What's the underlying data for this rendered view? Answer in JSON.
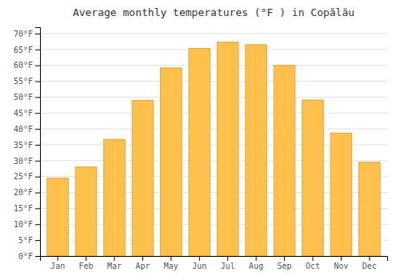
{
  "chart_data": {
    "type": "bar",
    "title": "Average monthly temperatures (°F ) in Copălău",
    "categories": [
      "Jan",
      "Feb",
      "Mar",
      "Apr",
      "May",
      "Jun",
      "Jul",
      "Aug",
      "Sep",
      "Oct",
      "Nov",
      "Dec"
    ],
    "values": [
      24.5,
      28.0,
      36.7,
      49.0,
      59.2,
      65.3,
      67.3,
      66.5,
      60.0,
      49.1,
      38.7,
      29.5
    ],
    "color": "#FFC04C",
    "ylim": [
      0,
      72
    ],
    "yticks": [
      {
        "value": 0,
        "label": "0°F"
      },
      {
        "value": 5,
        "label": "5°F"
      },
      {
        "value": 10,
        "label": "10°F"
      },
      {
        "value": 15,
        "label": "15°F"
      },
      {
        "value": 20,
        "label": "20°F"
      },
      {
        "value": 25,
        "label": "25°F"
      },
      {
        "value": 30,
        "label": "30°F"
      },
      {
        "value": 35,
        "label": "35°F"
      },
      {
        "value": 40,
        "label": "40°F"
      },
      {
        "value": 45,
        "label": "45°F"
      },
      {
        "value": 50,
        "label": "50°F"
      },
      {
        "value": 55,
        "label": "55°F"
      },
      {
        "value": 60,
        "label": "60°F"
      },
      {
        "value": 65,
        "label": "65°F"
      },
      {
        "value": 70,
        "label": "70°F"
      }
    ],
    "grid": true
  }
}
